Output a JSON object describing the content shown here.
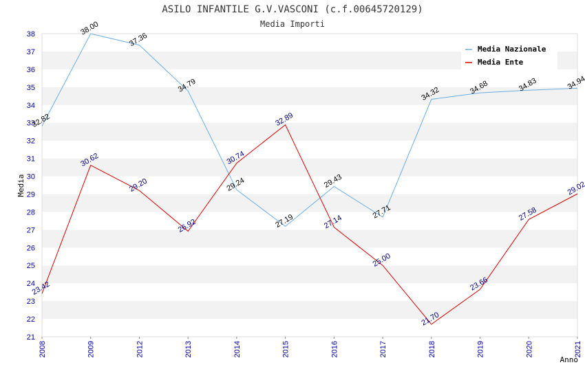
{
  "chart_data": {
    "type": "line",
    "title": "ASILO INFANTILE G.V.VASCONI (c.f.00645720129)",
    "subtitle": "Media Importi",
    "xlabel": "Anno",
    "ylabel": "Media",
    "categories": [
      "2008",
      "2009",
      "2012",
      "2013",
      "2014",
      "2015",
      "2016",
      "2017",
      "2018",
      "2019",
      "2020",
      "2021"
    ],
    "ylim": [
      21,
      38
    ],
    "yticks": [
      "21",
      "22",
      "23",
      "24",
      "25",
      "26",
      "27",
      "28",
      "29",
      "30",
      "31",
      "32",
      "33",
      "34",
      "35",
      "36",
      "37",
      "38"
    ],
    "grid": "horizontal alternating bands",
    "legend_position": "top-right",
    "series": [
      {
        "name": "Media Nazionale",
        "color": "#6aaee8",
        "values": [
          32.82,
          38.0,
          37.36,
          34.79,
          29.24,
          27.19,
          29.43,
          27.71,
          34.32,
          34.68,
          34.83,
          34.94
        ],
        "labels": [
          "32.82",
          "38.00",
          "37.36",
          "34.79",
          "29.24",
          "27.19",
          "29.43",
          "27.71",
          "34.32",
          "34.68",
          "34.83",
          "34.94"
        ]
      },
      {
        "name": "Media Ente",
        "color": "#dd0000",
        "values": [
          23.42,
          30.62,
          29.2,
          26.92,
          30.74,
          32.89,
          27.14,
          25.0,
          21.7,
          23.66,
          27.58,
          29.02
        ],
        "labels": [
          "23.42",
          "30.62",
          "29.20",
          "26.92",
          "30.74",
          "32.89",
          "27.14",
          "25.00",
          "21.70",
          "23.66",
          "27.58",
          "29.02"
        ]
      }
    ]
  }
}
